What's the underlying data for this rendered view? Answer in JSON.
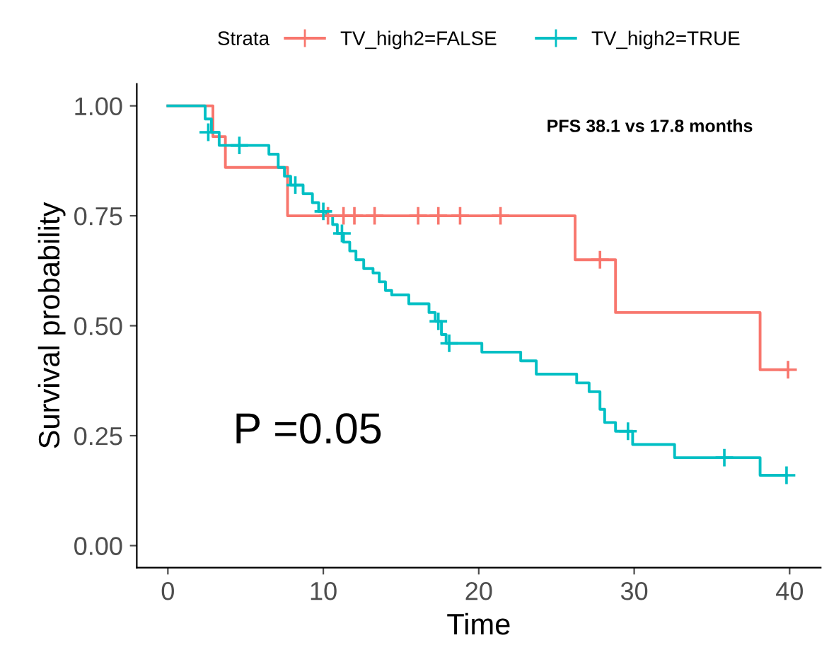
{
  "chart_data": {
    "type": "step",
    "xlabel": "Time",
    "ylabel": "Survival probability",
    "legend_title": "Strata",
    "legend": "top",
    "xlim": [
      -2,
      42
    ],
    "xticks": [
      0,
      10,
      20,
      30,
      40
    ],
    "ylim": [
      -0.05,
      1.05
    ],
    "yticks": [
      {
        "value": 0,
        "label": "0.00"
      },
      {
        "value": 0.25,
        "label": "0.25"
      },
      {
        "value": 0.5,
        "label": "0.50"
      },
      {
        "value": 0.75,
        "label": "0.75"
      },
      {
        "value": 1,
        "label": "1.00"
      }
    ],
    "grid": false,
    "annotations": [
      "PFS 38.1 vs 17.8 months",
      "P =0.05"
    ],
    "series": [
      {
        "name": "TV_high2=FALSE",
        "color": "#f8766d",
        "x": [
          0,
          2.9,
          3.7,
          7.7,
          26.2,
          28.8,
          38.1,
          39.9
        ],
        "values": [
          1,
          0.93,
          0.86,
          0.75,
          0.65,
          0.53,
          0.4,
          0.4
        ]
      },
      {
        "name": "TV_high2=TRUE",
        "color": "#00bfc4",
        "x": [
          0,
          2.4,
          2.8,
          3.3,
          6.5,
          7.1,
          7.5,
          7.9,
          8.7,
          9.3,
          9.7,
          10.2,
          10.6,
          10.9,
          11.3,
          11.7,
          12.1,
          12.6,
          13.2,
          13.6,
          14.0,
          14.4,
          15.5,
          16.8,
          17.2,
          17.6,
          17.9,
          20.2,
          22.7,
          23.7,
          26.3,
          27.1,
          27.8,
          28.1,
          28.8,
          29.9,
          32.6,
          38.1,
          39.8
        ],
        "values": [
          1,
          0.97,
          0.94,
          0.91,
          0.89,
          0.86,
          0.84,
          0.82,
          0.8,
          0.78,
          0.76,
          0.75,
          0.73,
          0.71,
          0.69,
          0.67,
          0.65,
          0.63,
          0.62,
          0.6,
          0.58,
          0.57,
          0.55,
          0.53,
          0.51,
          0.48,
          0.46,
          0.44,
          0.42,
          0.39,
          0.37,
          0.35,
          0.31,
          0.28,
          0.26,
          0.23,
          0.2,
          0.16,
          0.16
        ]
      },
      {
        "color": "#f8766d",
        "type": "scatter",
        "marker": "cross",
        "x": [
          10.3,
          11.3,
          12.0,
          13.3,
          16.1,
          17.4,
          18.8,
          21.4,
          27.8,
          39.9
        ],
        "values": [
          0.75,
          0.75,
          0.75,
          0.75,
          0.75,
          0.75,
          0.75,
          0.75,
          0.65,
          0.4
        ]
      },
      {
        "color": "#00bfc4",
        "type": "scatter",
        "marker": "cross",
        "x": [
          2.6,
          4.6,
          8.2,
          10.0,
          11.2,
          17.4,
          18.1,
          29.6,
          35.8,
          39.8
        ],
        "values": [
          0.94,
          0.91,
          0.82,
          0.76,
          0.71,
          0.51,
          0.46,
          0.26,
          0.2,
          0.16
        ]
      }
    ]
  }
}
